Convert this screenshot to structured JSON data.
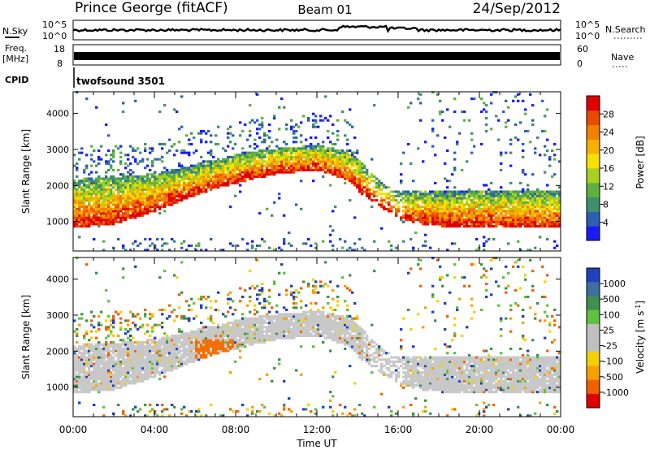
{
  "header": {
    "title": "Prince George (fitACF)",
    "beam": "Beam 01",
    "date": "24/Sep/2012"
  },
  "strips": {
    "nsky_label": "N.Sky",
    "nsky_top": "10^5",
    "nsky_bottom": "10^0",
    "nsearch_label": "N.Search",
    "nsearch_top": "10^5",
    "nsearch_bottom": "10^0",
    "freq_label_1": "Freq.",
    "freq_label_2": "[MHz]",
    "freq_top": "18",
    "freq_bottom": "8",
    "nave_label": "Nave",
    "nave_top": "60",
    "nave_bottom": "0",
    "cpid_label": "CPID",
    "cpid_value": "twofsound 3501"
  },
  "chart_data": [
    {
      "type": "heatmap",
      "quantity": "Power",
      "xlabel": "Time UT",
      "ylabel": "Slant Range [km]",
      "xlim": [
        0,
        24
      ],
      "ylim": [
        180,
        4600
      ],
      "x_ticks": [
        "00:00",
        "04:00",
        "08:00",
        "12:00",
        "16:00",
        "20:00",
        "00:00"
      ],
      "y_ticks": [
        1000,
        2000,
        3000,
        4000
      ],
      "colorbar": {
        "label": "Power [dB]",
        "tick_labels": [
          "4",
          "8",
          "12",
          "16",
          "20",
          "24",
          "28"
        ],
        "colors": [
          "#1a1aff",
          "#2d5fb3",
          "#3f8f6c",
          "#5fb040",
          "#a8d020",
          "#f6e000",
          "#f6b000",
          "#f27f00",
          "#e84a00",
          "#e00000"
        ]
      },
      "echo_band": [
        {
          "t": 0.0,
          "low": 800,
          "high": 2150
        },
        {
          "t": 2.0,
          "low": 900,
          "high": 2200
        },
        {
          "t": 4.0,
          "low": 1250,
          "high": 2300
        },
        {
          "t": 5.5,
          "low": 1600,
          "high": 2500
        },
        {
          "t": 7.0,
          "low": 1900,
          "high": 2700
        },
        {
          "t": 8.5,
          "low": 2100,
          "high": 2900
        },
        {
          "t": 10.0,
          "low": 2300,
          "high": 3000
        },
        {
          "t": 12.0,
          "low": 2400,
          "high": 3100
        },
        {
          "t": 13.5,
          "low": 2100,
          "high": 2900
        },
        {
          "t": 14.2,
          "low": 1700,
          "high": 2600
        },
        {
          "t": 15.0,
          "low": 1400,
          "high": 2100
        },
        {
          "t": 16.0,
          "low": 1050,
          "high": 1800
        },
        {
          "t": 17.5,
          "low": 850,
          "high": 1800
        },
        {
          "t": 20.0,
          "low": 800,
          "high": 1800
        },
        {
          "t": 24.0,
          "low": 800,
          "high": 1800
        }
      ]
    },
    {
      "type": "heatmap",
      "quantity": "Velocity",
      "xlabel": "Time UT",
      "ylabel": "Slant Range [km]",
      "xlim": [
        0,
        24
      ],
      "ylim": [
        180,
        4600
      ],
      "x_ticks": [
        "00:00",
        "04:00",
        "08:00",
        "12:00",
        "16:00",
        "20:00",
        "00:00"
      ],
      "y_ticks": [
        1000,
        2000,
        3000,
        4000
      ],
      "colorbar": {
        "label": "Velocity [m s-1]",
        "tick_labels": [
          "1000",
          "500",
          "100",
          "25",
          "-25",
          "-100",
          "-500",
          "-1000"
        ],
        "colors": [
          "#2040c0",
          "#3f6fa0",
          "#3f8f50",
          "#60c040",
          "#c0c0c0",
          "#c0c0c0",
          "#f6d000",
          "#f6a000",
          "#f06000",
          "#e00000"
        ]
      },
      "features": [
        {
          "t": 6.5,
          "range": 1800,
          "value": -500
        },
        {
          "t": 7.5,
          "range": 1900,
          "value": -100
        }
      ]
    }
  ]
}
